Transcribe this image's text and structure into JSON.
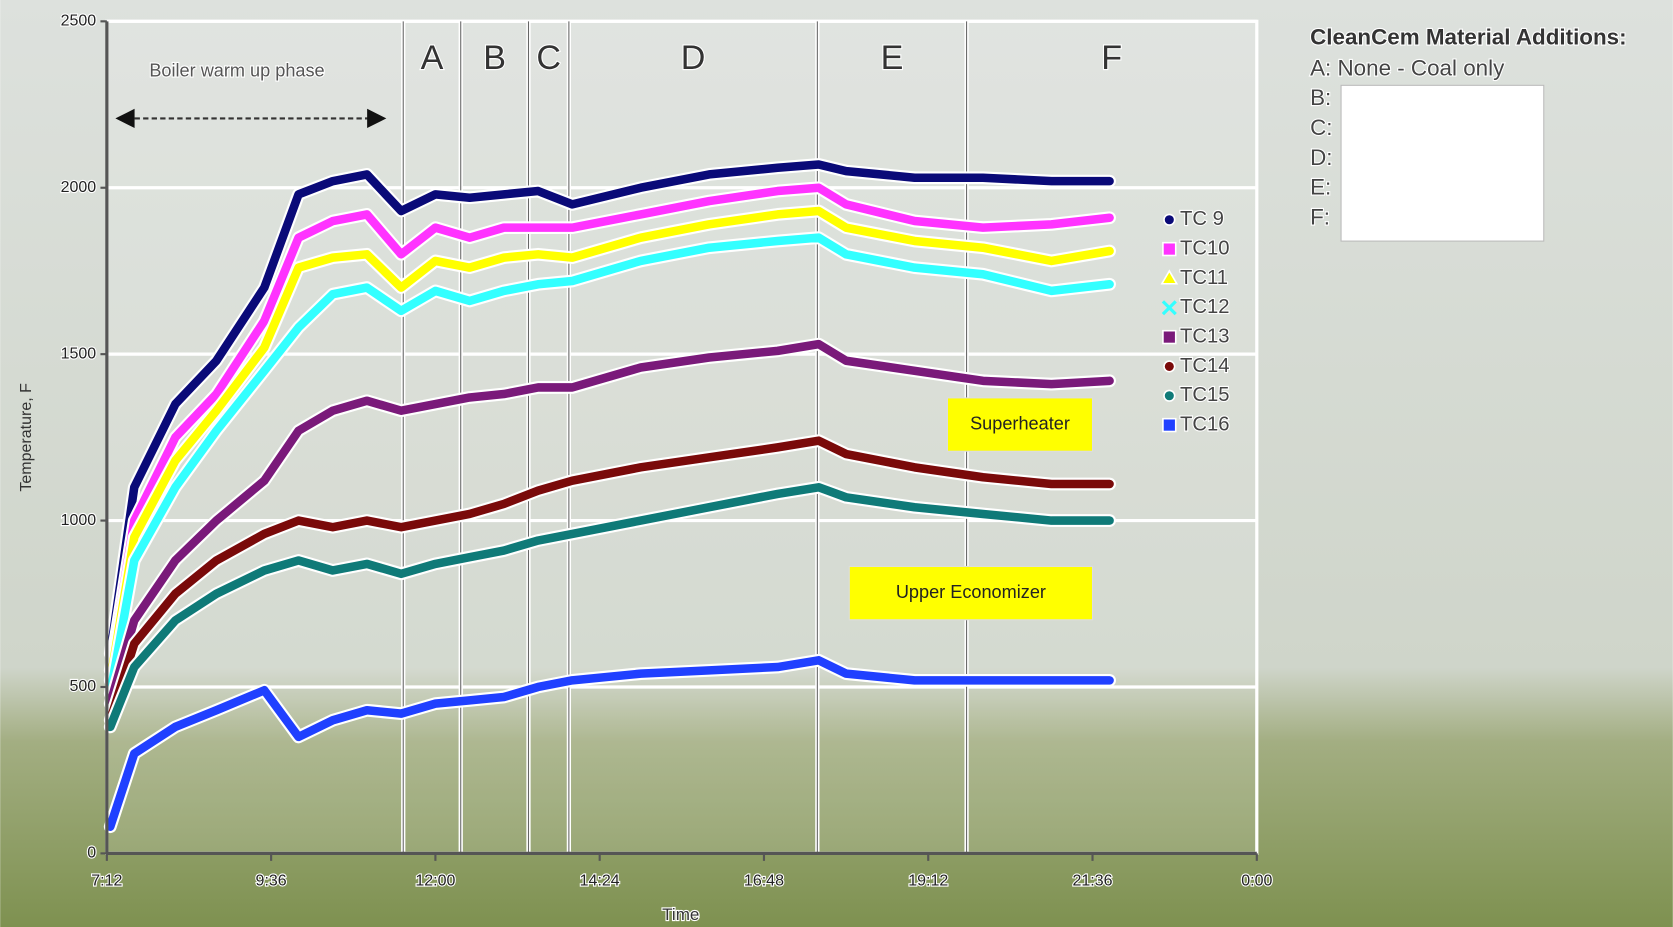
{
  "chart_data": {
    "type": "line",
    "y_label": "Temperature, F",
    "x_label": "Time",
    "x": [
      7.25,
      7.6,
      8.2,
      8.8,
      9.5,
      10.0,
      10.5,
      11.0,
      11.5,
      12.0,
      12.5,
      13.0,
      13.5,
      14.0,
      15.0,
      16.0,
      17.0,
      17.6,
      18.0,
      19.0,
      20.0,
      21.0,
      21.85
    ],
    "xlim": [
      7.2,
      24
    ],
    "xticks": [
      {
        "value": 7.2,
        "label": "7:12"
      },
      {
        "value": 9.6,
        "label": "9:36"
      },
      {
        "value": 12,
        "label": "12:00"
      },
      {
        "value": 14.4,
        "label": "14:24"
      },
      {
        "value": 16.8,
        "label": "16:48"
      },
      {
        "value": 19.2,
        "label": "19:12"
      },
      {
        "value": 21.6,
        "label": "21:36"
      },
      {
        "value": 24,
        "label": "0:00"
      }
    ],
    "ylim": [
      0,
      2500
    ],
    "yticks": [
      0,
      500,
      1000,
      1500,
      2000,
      2500
    ],
    "grid": true,
    "series": [
      {
        "name": "TC 9",
        "color": "#0a0a78",
        "marker": "circle",
        "values": [
          600,
          1100,
          1350,
          1480,
          1700,
          1980,
          2020,
          2040,
          1930,
          1980,
          1970,
          1980,
          1990,
          1950,
          2000,
          2040,
          2060,
          2070,
          2050,
          2030,
          2030,
          2020,
          2020
        ]
      },
      {
        "name": "TC10",
        "color": "#ff33ff",
        "marker": "square",
        "values": [
          550,
          1000,
          1250,
          1380,
          1600,
          1850,
          1900,
          1920,
          1800,
          1880,
          1850,
          1880,
          1880,
          1880,
          1920,
          1960,
          1990,
          2000,
          1950,
          1900,
          1880,
          1890,
          1910
        ]
      },
      {
        "name": "TC11",
        "color": "#ffff00",
        "marker": "triangle",
        "values": [
          520,
          950,
          1180,
          1330,
          1520,
          1760,
          1790,
          1800,
          1700,
          1780,
          1760,
          1790,
          1800,
          1790,
          1850,
          1890,
          1920,
          1930,
          1880,
          1840,
          1820,
          1780,
          1810
        ]
      },
      {
        "name": "TC12",
        "color": "#33ffff",
        "marker": "cross",
        "values": [
          480,
          880,
          1100,
          1270,
          1450,
          1580,
          1680,
          1700,
          1630,
          1690,
          1660,
          1690,
          1710,
          1720,
          1780,
          1820,
          1840,
          1850,
          1800,
          1760,
          1740,
          1690,
          1710
        ]
      },
      {
        "name": "TC13",
        "color": "#7a1a7a",
        "marker": "square",
        "values": [
          450,
          700,
          880,
          1000,
          1120,
          1270,
          1330,
          1360,
          1330,
          1350,
          1370,
          1380,
          1400,
          1400,
          1460,
          1490,
          1510,
          1530,
          1480,
          1450,
          1420,
          1410,
          1420
        ]
      },
      {
        "name": "TC14",
        "color": "#7a0a0a",
        "marker": "circle",
        "values": [
          400,
          630,
          780,
          880,
          960,
          1000,
          980,
          1000,
          980,
          1000,
          1020,
          1050,
          1090,
          1120,
          1160,
          1190,
          1220,
          1240,
          1200,
          1160,
          1130,
          1110,
          1110
        ]
      },
      {
        "name": "TC15",
        "color": "#0f7a78",
        "marker": "circle",
        "values": [
          380,
          560,
          700,
          780,
          850,
          880,
          850,
          870,
          840,
          870,
          890,
          910,
          940,
          960,
          1000,
          1040,
          1080,
          1100,
          1070,
          1040,
          1020,
          1000,
          1000
        ]
      },
      {
        "name": "TC16",
        "color": "#2040ff",
        "marker": "square",
        "values": [
          80,
          300,
          380,
          430,
          490,
          350,
          400,
          430,
          420,
          450,
          460,
          470,
          500,
          520,
          540,
          550,
          560,
          580,
          540,
          520,
          520,
          520,
          520
        ]
      }
    ],
    "phases": [
      {
        "label": "A",
        "start": 11.53,
        "end": 12.37
      },
      {
        "label": "B",
        "start": 12.37,
        "end": 13.36
      },
      {
        "label": "C",
        "start": 13.36,
        "end": 13.95
      },
      {
        "label": "D",
        "start": 13.95,
        "end": 17.58
      },
      {
        "label": "E",
        "start": 17.58,
        "end": 19.76
      },
      {
        "label": "F",
        "start": 19.76,
        "end": 24
      }
    ],
    "annotations": [
      "Boiler warm up phase",
      "Superheater",
      "Upper Economizer"
    ],
    "panel_title": "CleanCem Material Additions:",
    "panel_items": [
      "A: None - Coal only",
      "B:",
      "C:",
      "D:",
      "E:",
      "F:"
    ]
  }
}
